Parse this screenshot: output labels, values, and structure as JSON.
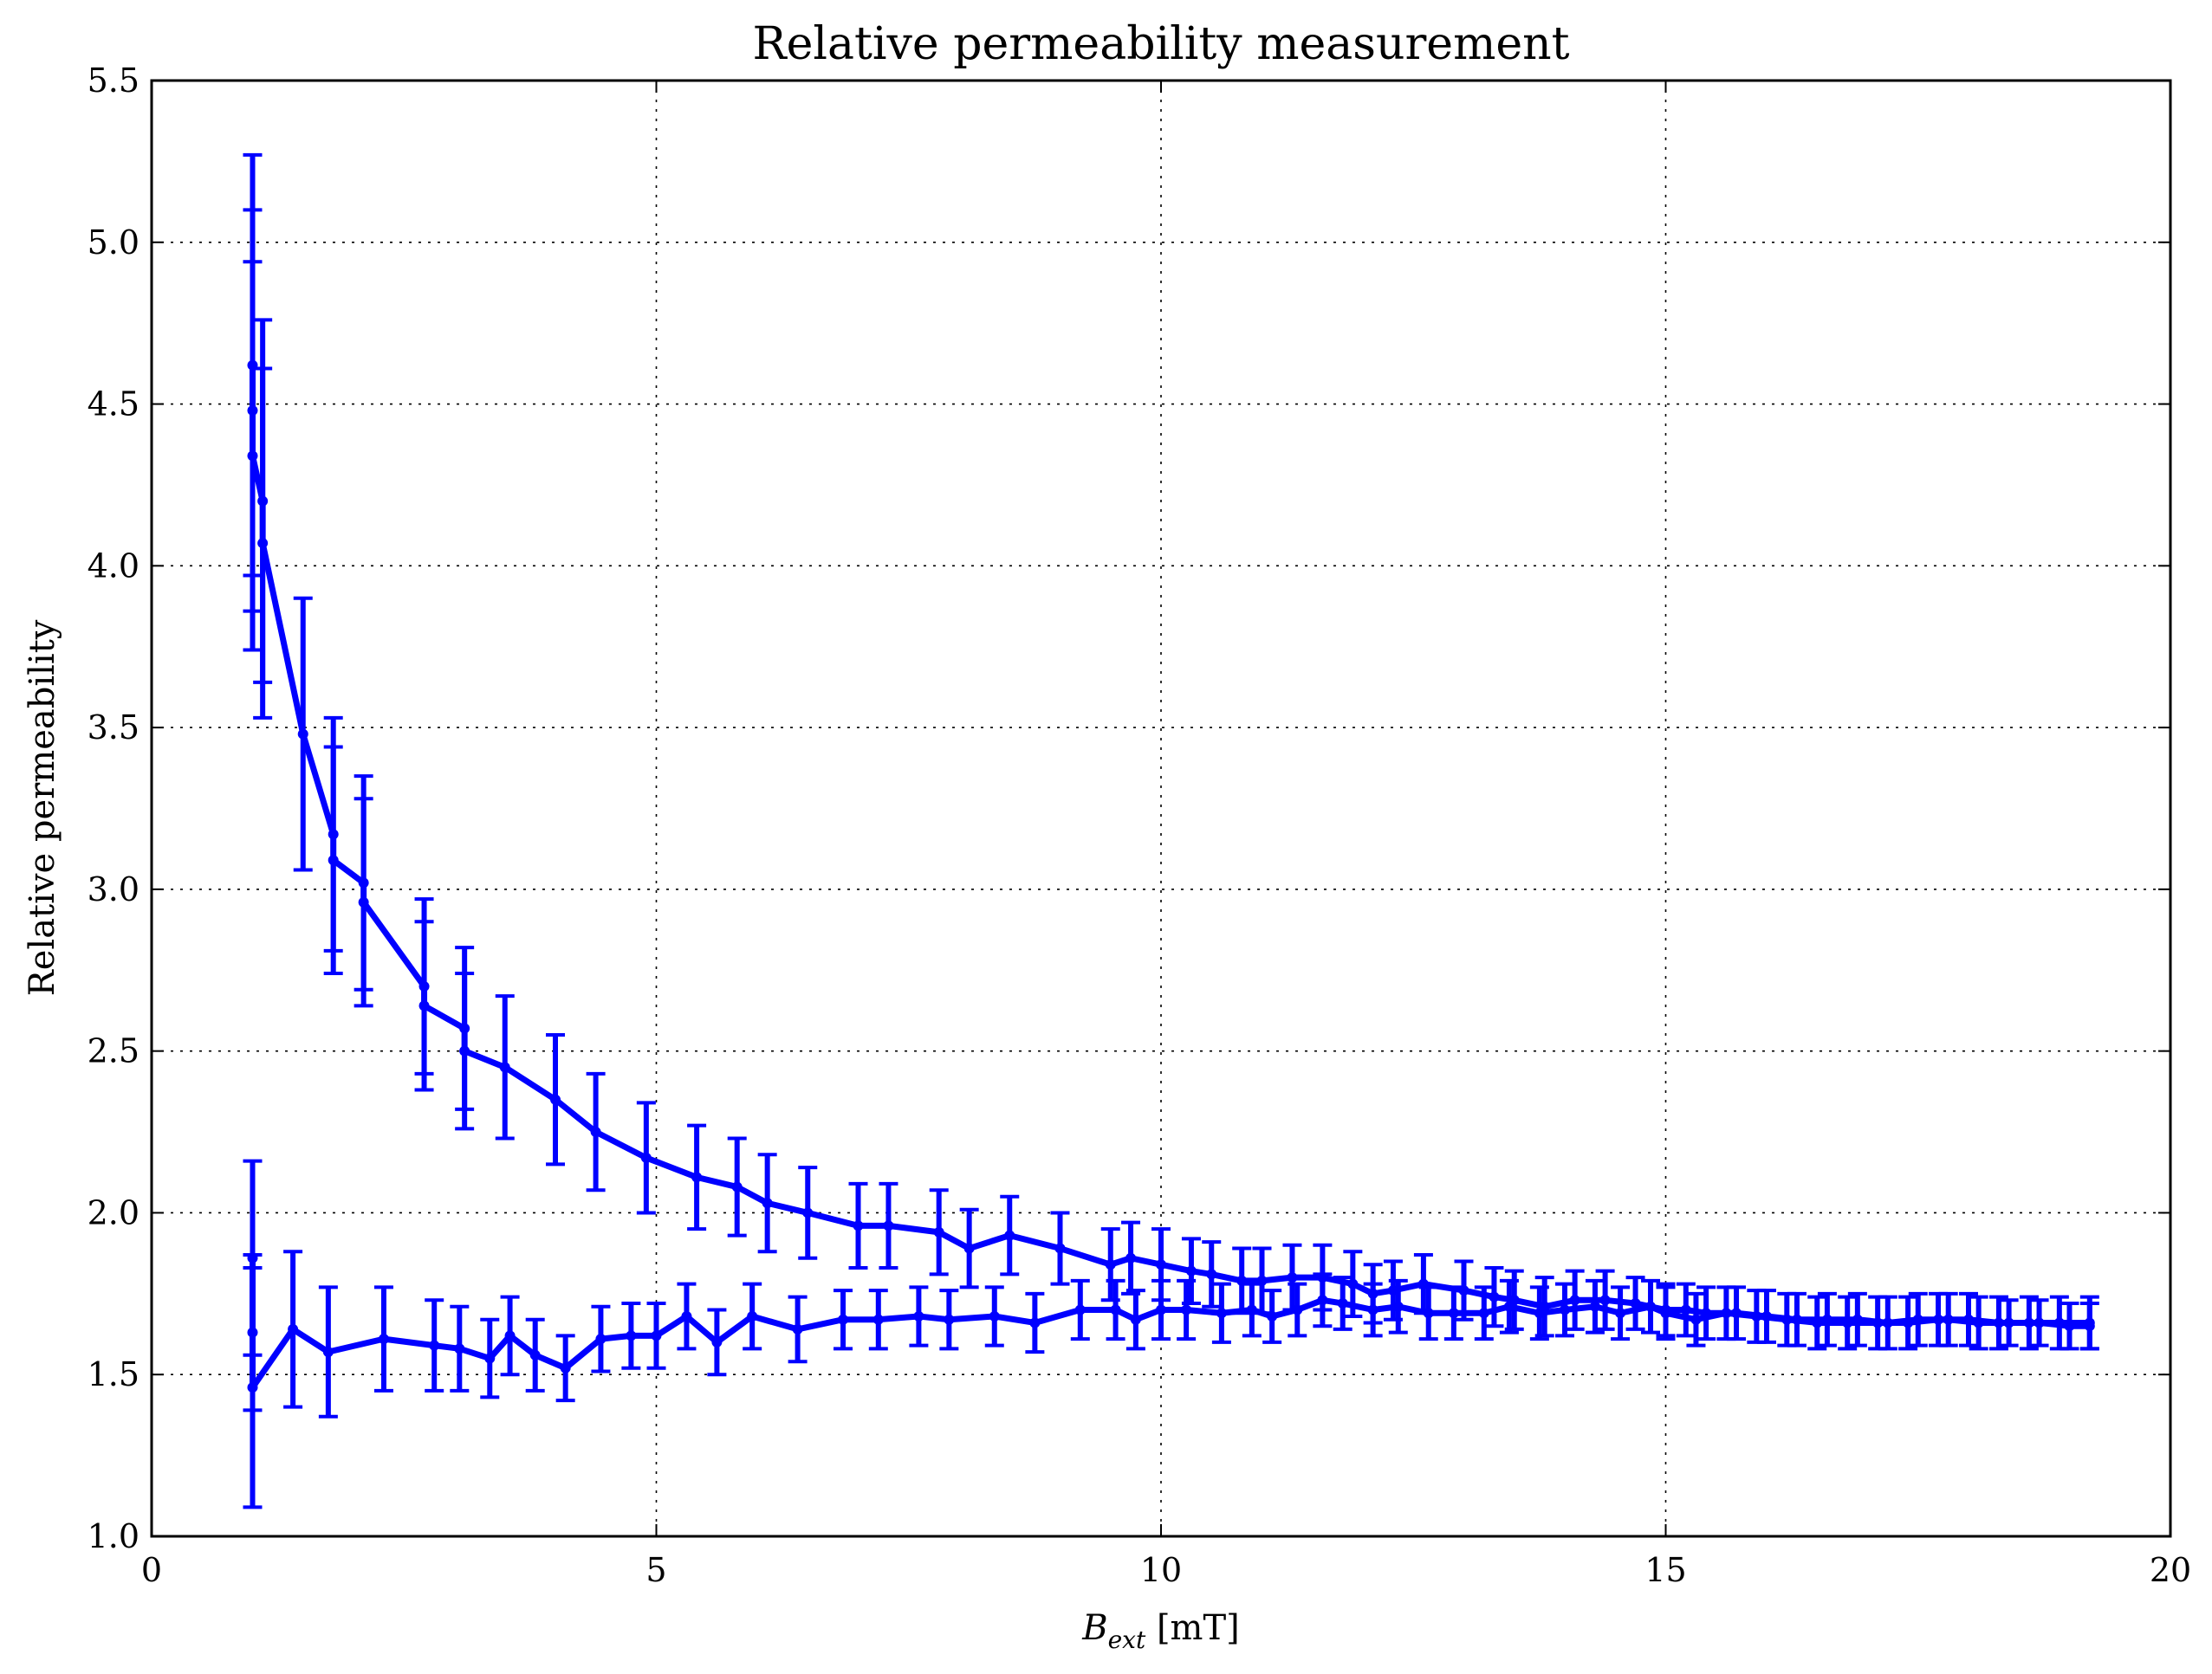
{
  "chart_data": {
    "type": "line",
    "title": "Relative permeability measurement",
    "xlabel_base": "B",
    "xlabel_sub": "ext",
    "xlabel_unit": " [mT]",
    "ylabel": "Relative permeability",
    "xlim": [
      0,
      20
    ],
    "ylim": [
      1.0,
      5.5
    ],
    "xticks": [
      0,
      5,
      10,
      15,
      20
    ],
    "xtick_labels": [
      "0",
      "5",
      "10",
      "15",
      "20"
    ],
    "yticks": [
      1.0,
      1.5,
      2.0,
      2.5,
      3.0,
      3.5,
      4.0,
      4.5,
      5.0,
      5.5
    ],
    "ytick_labels": [
      "1.0",
      "1.5",
      "2.0",
      "2.5",
      "3.0",
      "3.5",
      "4.0",
      "4.5",
      "5.0",
      "5.5"
    ],
    "grid": true,
    "color": "#0000ff",
    "series": [
      {
        "x": [
          1.0,
          1.0,
          1.0,
          1.1,
          1.1,
          1.5,
          1.8,
          1.8,
          2.1,
          2.1,
          2.7,
          2.7,
          3.1,
          3.1,
          3.5,
          4.0,
          4.4,
          4.9,
          5.4,
          5.8,
          6.1,
          6.5,
          7.0,
          7.3,
          7.8,
          8.1,
          8.5,
          9.0,
          9.5,
          9.7,
          10.0,
          10.3,
          10.5,
          10.8,
          11.0,
          11.3,
          11.6,
          11.9,
          12.1,
          12.3,
          12.6,
          13.0,
          13.3,
          13.5,
          13.8,
          14.1,
          14.4,
          14.7,
          15.0,
          15.2,
          15.4,
          15.7,
          16.0,
          16.3,
          16.6,
          16.9,
          17.2,
          17.5,
          17.8,
          18.1,
          18.4,
          18.7,
          19.0,
          19.2
        ],
        "y": [
          4.62,
          4.48,
          4.34,
          4.2,
          4.07,
          3.48,
          3.17,
          3.09,
          3.02,
          2.96,
          2.7,
          2.64,
          2.57,
          2.5,
          2.45,
          2.35,
          2.25,
          2.17,
          2.11,
          2.08,
          2.03,
          2.0,
          1.96,
          1.96,
          1.94,
          1.89,
          1.93,
          1.89,
          1.84,
          1.86,
          1.84,
          1.82,
          1.81,
          1.79,
          1.79,
          1.8,
          1.8,
          1.78,
          1.75,
          1.76,
          1.78,
          1.76,
          1.74,
          1.73,
          1.71,
          1.73,
          1.73,
          1.72,
          1.7,
          1.7,
          1.69,
          1.69,
          1.68,
          1.67,
          1.67,
          1.67,
          1.66,
          1.67,
          1.67,
          1.66,
          1.66,
          1.66,
          1.65,
          1.65
        ],
        "yerr": [
          0.65,
          0.62,
          0.6,
          0.56,
          0.54,
          0.42,
          0.36,
          0.35,
          0.33,
          0.32,
          0.27,
          0.26,
          0.25,
          0.24,
          0.22,
          0.2,
          0.18,
          0.17,
          0.16,
          0.15,
          0.15,
          0.14,
          0.13,
          0.13,
          0.13,
          0.12,
          0.12,
          0.11,
          0.11,
          0.11,
          0.11,
          0.1,
          0.1,
          0.1,
          0.1,
          0.1,
          0.1,
          0.1,
          0.09,
          0.09,
          0.09,
          0.09,
          0.09,
          0.09,
          0.09,
          0.09,
          0.09,
          0.08,
          0.08,
          0.08,
          0.08,
          0.08,
          0.08,
          0.08,
          0.08,
          0.08,
          0.08,
          0.08,
          0.08,
          0.08,
          0.07,
          0.07,
          0.07,
          0.07
        ]
      },
      {
        "x": [
          1.0,
          1.0,
          1.0,
          1.4,
          1.75,
          2.3,
          2.8,
          3.05,
          3.35,
          3.55,
          3.8,
          4.1,
          4.45,
          4.75,
          5.0,
          5.3,
          5.6,
          5.95,
          6.4,
          6.85,
          7.2,
          7.6,
          7.9,
          8.35,
          8.75,
          9.2,
          9.55,
          9.75,
          10.0,
          10.25,
          10.6,
          10.9,
          11.1,
          11.35,
          11.6,
          11.8,
          12.1,
          12.35,
          12.65,
          12.9,
          13.2,
          13.45,
          13.75,
          14.0,
          14.3,
          14.55,
          14.85,
          15.0,
          15.3,
          15.6,
          15.9,
          16.2,
          16.5,
          16.8,
          17.1,
          17.4,
          17.7,
          18.0,
          18.3,
          18.6,
          18.9,
          19.2
        ],
        "y": [
          1.86,
          1.63,
          1.46,
          1.64,
          1.57,
          1.61,
          1.59,
          1.58,
          1.55,
          1.62,
          1.56,
          1.52,
          1.61,
          1.62,
          1.62,
          1.68,
          1.6,
          1.68,
          1.64,
          1.67,
          1.67,
          1.68,
          1.67,
          1.68,
          1.66,
          1.7,
          1.7,
          1.67,
          1.7,
          1.7,
          1.69,
          1.7,
          1.68,
          1.7,
          1.73,
          1.72,
          1.7,
          1.71,
          1.69,
          1.69,
          1.69,
          1.71,
          1.69,
          1.7,
          1.71,
          1.69,
          1.71,
          1.69,
          1.67,
          1.69,
          1.68,
          1.67,
          1.66,
          1.66,
          1.66,
          1.66,
          1.67,
          1.67,
          1.66,
          1.66,
          1.66,
          1.66
        ],
        "yerr": [
          0.3,
          0.24,
          0.37,
          0.24,
          0.2,
          0.16,
          0.14,
          0.13,
          0.12,
          0.12,
          0.11,
          0.1,
          0.1,
          0.1,
          0.1,
          0.1,
          0.1,
          0.1,
          0.1,
          0.09,
          0.09,
          0.09,
          0.09,
          0.09,
          0.09,
          0.09,
          0.09,
          0.09,
          0.09,
          0.09,
          0.09,
          0.08,
          0.08,
          0.08,
          0.08,
          0.08,
          0.08,
          0.08,
          0.08,
          0.08,
          0.08,
          0.08,
          0.08,
          0.08,
          0.08,
          0.08,
          0.08,
          0.08,
          0.08,
          0.08,
          0.08,
          0.08,
          0.08,
          0.08,
          0.08,
          0.08,
          0.08,
          0.08,
          0.08,
          0.08,
          0.08,
          0.08
        ]
      }
    ]
  }
}
